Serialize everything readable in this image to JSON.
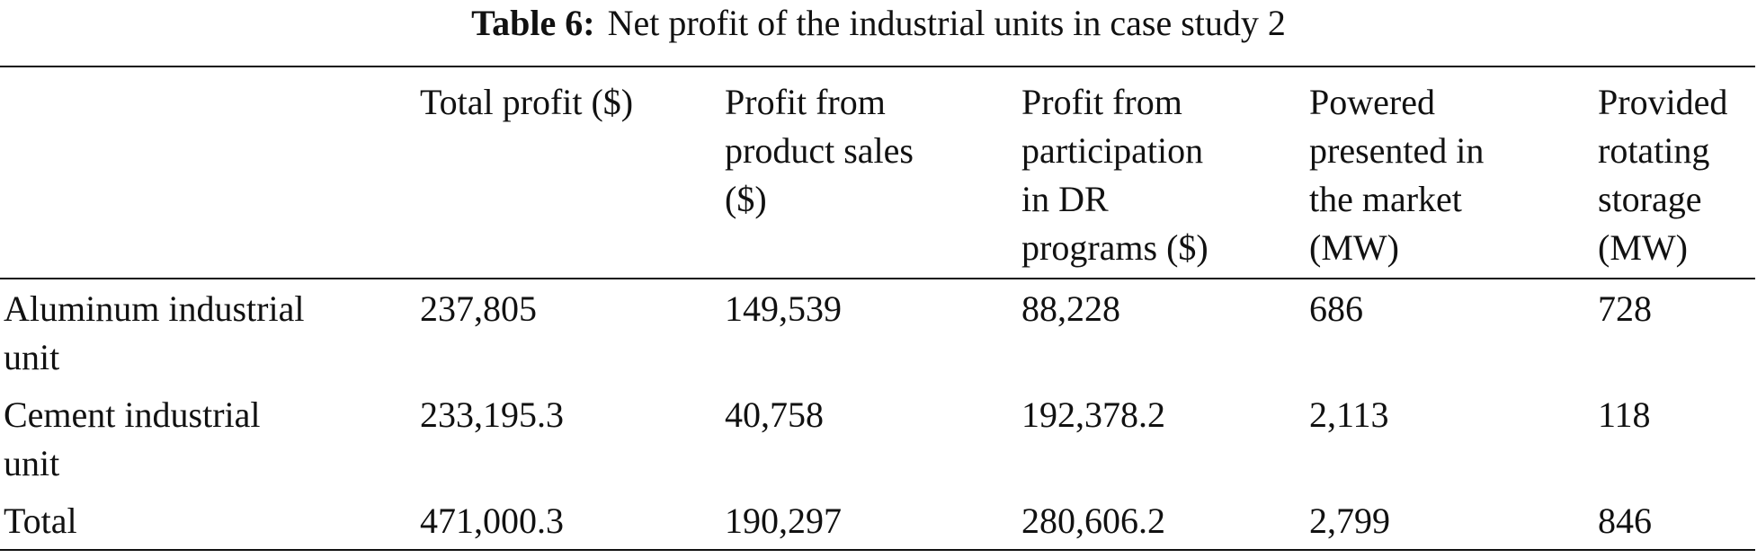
{
  "caption": {
    "label": "Table 6:",
    "text": "Net profit of the industrial units in case study 2"
  },
  "table": {
    "headers": [
      "",
      "Total profit ($)",
      "Profit from product sales ($)",
      "Profit from participation in DR programs ($)",
      "Powered presented in the market (MW)",
      "Provided rotating storage (MW)"
    ],
    "header_lines": [
      [
        ""
      ],
      [
        "Total profit ($)"
      ],
      [
        "Profit from",
        "product sales",
        "($)"
      ],
      [
        "Profit from",
        "participation",
        "in DR",
        "programs ($)"
      ],
      [
        "Powered",
        "presented in",
        "the market",
        "(MW)"
      ],
      [
        "Provided",
        "rotating",
        "storage",
        "(MW)"
      ]
    ],
    "rows": [
      {
        "label_lines": [
          "Aluminum industrial",
          "unit"
        ],
        "values": [
          "237,805",
          "149,539",
          "88,228",
          "686",
          "728"
        ]
      },
      {
        "label_lines": [
          "Cement industrial",
          "unit"
        ],
        "values": [
          "233,195.3",
          "40,758",
          "192,378.2",
          "2,113",
          "118"
        ]
      },
      {
        "label_lines": [
          "Total"
        ],
        "values": [
          "471,000.3",
          "190,297",
          "280,606.2",
          "2,799",
          "846"
        ]
      }
    ]
  }
}
